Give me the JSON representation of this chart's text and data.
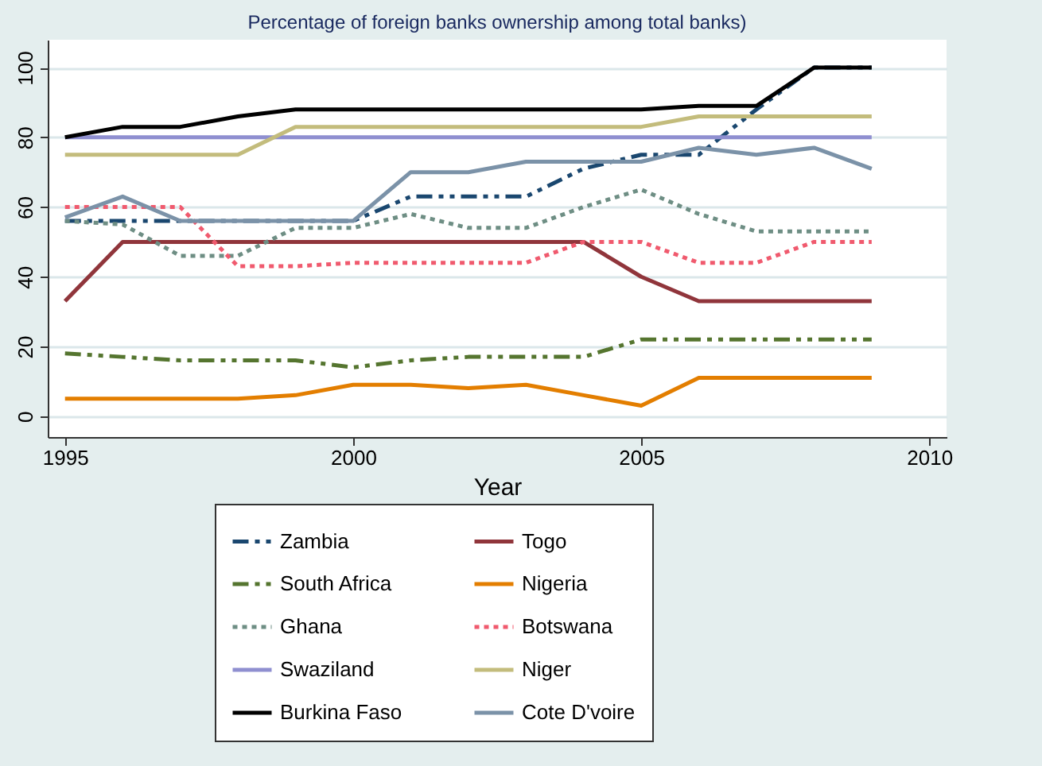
{
  "chart_data": {
    "type": "line",
    "title": "Percentage of foreign banks ownership among total banks)",
    "xlabel": "Year",
    "x": [
      1995,
      1996,
      1997,
      1998,
      1999,
      2000,
      2001,
      2002,
      2003,
      2004,
      2005,
      2006,
      2007,
      2008,
      2009
    ],
    "xlim": [
      1994.7,
      2010.3
    ],
    "xticks": [
      1995,
      2000,
      2005,
      2010
    ],
    "ylim": [
      -6,
      108
    ],
    "yticks": [
      0,
      20,
      40,
      60,
      80,
      100
    ],
    "grid": "y",
    "legend": "bottom",
    "series": [
      {
        "name": "Zambia",
        "color": "#1a476f",
        "line_style": "dashed",
        "values": [
          56,
          56,
          56,
          56,
          56,
          56,
          63,
          63,
          63,
          71,
          75,
          75,
          88,
          100,
          100
        ]
      },
      {
        "name": "Togo",
        "color": "#90353b",
        "line_style": "solid",
        "values": [
          33,
          50,
          50,
          50,
          50,
          50,
          50,
          50,
          50,
          50,
          40,
          33,
          33,
          33,
          33
        ]
      },
      {
        "name": "South Africa",
        "color": "#55752f",
        "line_style": "dashed",
        "values": [
          18,
          17,
          16,
          16,
          16,
          14,
          16,
          17,
          17,
          17,
          22,
          22,
          22,
          22,
          22
        ]
      },
      {
        "name": "Nigeria",
        "color": "#e37e00",
        "line_style": "solid",
        "values": [
          5,
          5,
          5,
          5,
          6,
          9,
          9,
          8,
          9,
          6,
          3,
          11,
          11,
          11,
          11
        ]
      },
      {
        "name": "Ghana",
        "color": "#6e8e84",
        "line_style": "dotted",
        "values": [
          56,
          55,
          46,
          46,
          54,
          54,
          58,
          54,
          54,
          60,
          65,
          58,
          53,
          53,
          53
        ]
      },
      {
        "name": "Botswana",
        "color": "#f05a6e",
        "line_style": "dotted",
        "values": [
          60,
          60,
          60,
          43,
          43,
          44,
          44,
          44,
          44,
          50,
          50,
          44,
          44,
          50,
          50
        ]
      },
      {
        "name": "Swaziland",
        "color": "#8f8fd0",
        "line_style": "solid",
        "values": [
          80,
          80,
          80,
          80,
          80,
          80,
          80,
          80,
          80,
          80,
          80,
          80,
          80,
          80,
          80
        ]
      },
      {
        "name": "Niger",
        "color": "#c3bc7c",
        "line_style": "solid",
        "values": [
          75,
          75,
          75,
          75,
          83,
          83,
          83,
          83,
          83,
          83,
          83,
          86,
          86,
          86,
          86
        ]
      },
      {
        "name": "Burkina Faso",
        "color": "#000000",
        "line_style": "solid",
        "values": [
          80,
          83,
          83,
          86,
          88,
          88,
          88,
          88,
          88,
          88,
          88,
          89,
          89,
          100,
          100
        ]
      },
      {
        "name": "Cote D'voire",
        "color": "#7b92a8",
        "line_style": "solid",
        "values": [
          57,
          63,
          56,
          56,
          56,
          56,
          70,
          70,
          73,
          73,
          73,
          77,
          75,
          77,
          71
        ]
      }
    ]
  }
}
